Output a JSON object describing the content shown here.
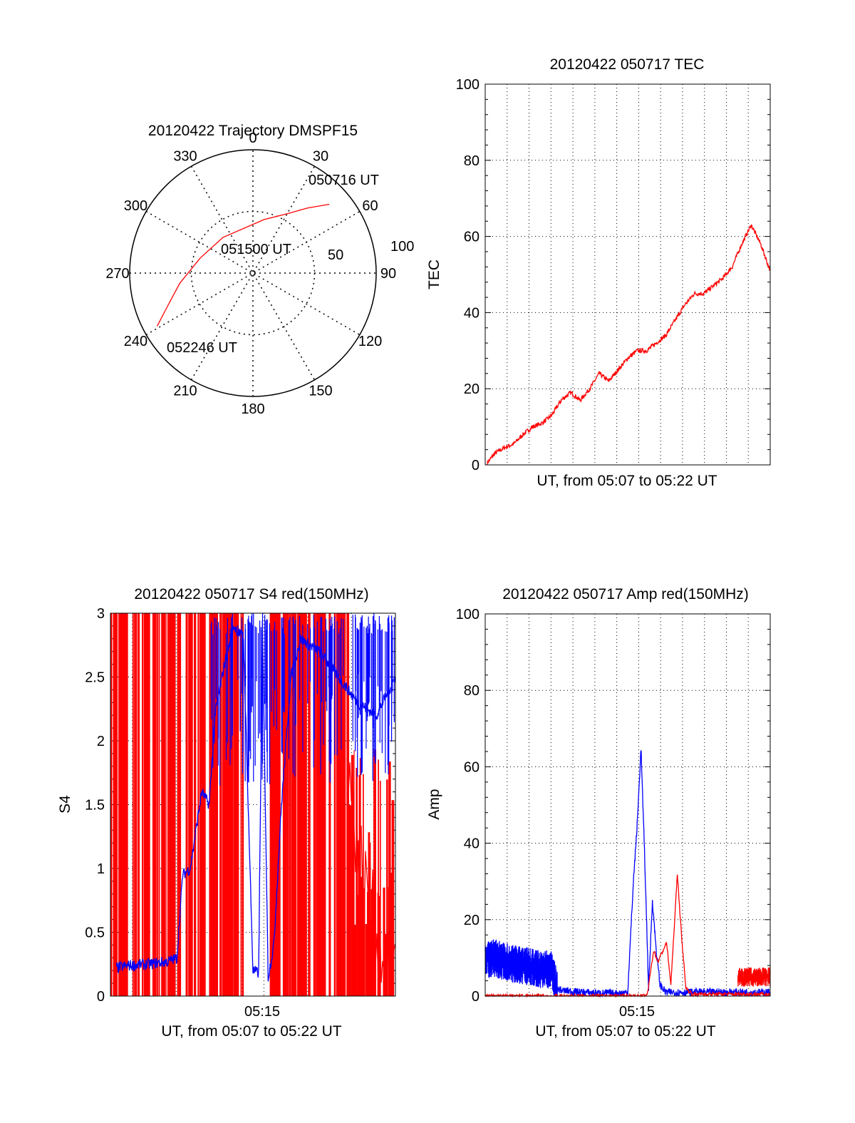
{
  "colors": {
    "red": "#ff0000",
    "blue": "#0000ff",
    "black": "#000000"
  },
  "chart_data": [
    {
      "id": "polar",
      "type": "scatter",
      "title": "20120422 Trajectory DMSPF15",
      "angle_labels": [
        "0",
        "30",
        "60",
        "90",
        "120",
        "150",
        "180",
        "210",
        "240",
        "270",
        "300",
        "330"
      ],
      "radial_labels": [
        "50",
        "100"
      ],
      "points": [
        {
          "label": "050716 UT",
          "azimuth": 48,
          "elevation": 15
        },
        {
          "label": "051500 UT",
          "azimuth": 12,
          "elevation": 50
        },
        {
          "label": "052246 UT",
          "azimuth": 241,
          "elevation": 10
        }
      ],
      "track": [
        [
          48,
          15
        ],
        [
          40,
          28
        ],
        [
          30,
          40
        ],
        [
          12,
          50
        ],
        [
          320,
          56
        ],
        [
          286,
          50
        ],
        [
          262,
          36
        ],
        [
          248,
          22
        ],
        [
          241,
          10
        ]
      ]
    },
    {
      "id": "tec",
      "type": "line",
      "title": "20120422 050717 TEC",
      "xlabel": "UT, from 05:07 to 05:22 UT",
      "ylabel": "TEC",
      "ylim": [
        0,
        100
      ],
      "yticks": [
        "0",
        "20",
        "40",
        "60",
        "80",
        "100"
      ],
      "xlim": [
        0,
        15
      ],
      "series": [
        {
          "color": "red",
          "x": [
            0.1,
            0.5,
            1,
            1.5,
            2,
            2.5,
            3,
            3.5,
            4,
            4.5,
            5,
            5.5,
            6,
            6.5,
            7,
            7.5,
            8,
            8.5,
            9,
            9.5,
            10,
            10.5,
            11,
            11.5,
            12,
            12.5,
            13,
            13.5,
            14,
            14.5,
            15
          ],
          "y": [
            0.5,
            3,
            4.5,
            5.5,
            8,
            10,
            11,
            13,
            17,
            19,
            17,
            20,
            24,
            22,
            25,
            28,
            30,
            30,
            32,
            34,
            38,
            42,
            45,
            45,
            47,
            49,
            52,
            58,
            63,
            58,
            51
          ]
        }
      ]
    },
    {
      "id": "s4",
      "type": "line",
      "title": "20120422 050717 S4 red(150MHz)",
      "xlabel": "UT, from 05:07 to 05:22 UT",
      "ylabel": "S4",
      "ylim": [
        0,
        3
      ],
      "yticks": [
        "0",
        "0.5",
        "1",
        "1.5",
        "2",
        "2.5",
        "3"
      ],
      "xtick_label": "05:15",
      "xlim": [
        0,
        15
      ],
      "series": [
        {
          "color": "blue",
          "x": [
            0.3,
            1,
            2,
            3,
            3.5,
            3.8,
            4.2,
            4.8,
            5.2,
            5.5,
            6,
            6.5,
            7,
            7.5,
            7.8,
            8,
            8.3,
            8.6,
            9,
            9.5,
            10,
            11,
            12,
            13,
            14,
            15
          ],
          "y": [
            0.22,
            0.24,
            0.25,
            0.27,
            0.3,
            0.95,
            1.0,
            1.6,
            1.5,
            2.2,
            2.6,
            2.9,
            2.8,
            0.2,
            0.18,
            2.9,
            0.15,
            0.4,
            1.5,
            2.5,
            2.8,
            2.7,
            2.5,
            2.3,
            2.2,
            2.5
          ]
        },
        {
          "color": "red",
          "x": [
            12.5,
            13,
            13.5,
            14,
            14.5,
            15
          ],
          "y": [
            1.8,
            1.2,
            0.8,
            0.5,
            0.3,
            0.3
          ]
        }
      ]
    },
    {
      "id": "amp",
      "type": "line",
      "title": "20120422 050717 Amp red(150MHz)",
      "xlabel": "UT, from 05:07 to 05:22 UT",
      "ylabel": "Amp",
      "ylim": [
        0,
        100
      ],
      "yticks": [
        "0",
        "20",
        "40",
        "60",
        "80",
        "100"
      ],
      "xtick_label": "05:15",
      "xlim": [
        0,
        15
      ],
      "series": [
        {
          "color": "blue",
          "x": [
            0,
            0.5,
            1,
            1.5,
            2,
            2.5,
            3,
            3.5,
            3.8,
            4,
            5,
            6,
            7,
            7.5,
            7.8,
            8,
            8.2,
            8.4,
            8.6,
            8.8,
            9,
            9.2,
            9.5,
            10,
            11,
            12,
            13,
            14,
            15
          ],
          "y": [
            9,
            10,
            9,
            8.5,
            8,
            7.5,
            7,
            7,
            2,
            1.5,
            1,
            0.8,
            0.7,
            1,
            30,
            45,
            65,
            35,
            2,
            25,
            12,
            3,
            1,
            1,
            1,
            1,
            1,
            1,
            1
          ]
        },
        {
          "color": "red",
          "x": [
            0,
            3.5,
            7.5,
            7.8,
            8,
            8.4,
            8.6,
            8.9,
            9.1,
            9.3,
            9.6,
            13,
            13.5,
            14,
            15
          ],
          "y": [
            0,
            0,
            0,
            12,
            9,
            14,
            3,
            32,
            15,
            2,
            0.5,
            0.5,
            5,
            6,
            6
          ]
        }
      ]
    }
  ]
}
